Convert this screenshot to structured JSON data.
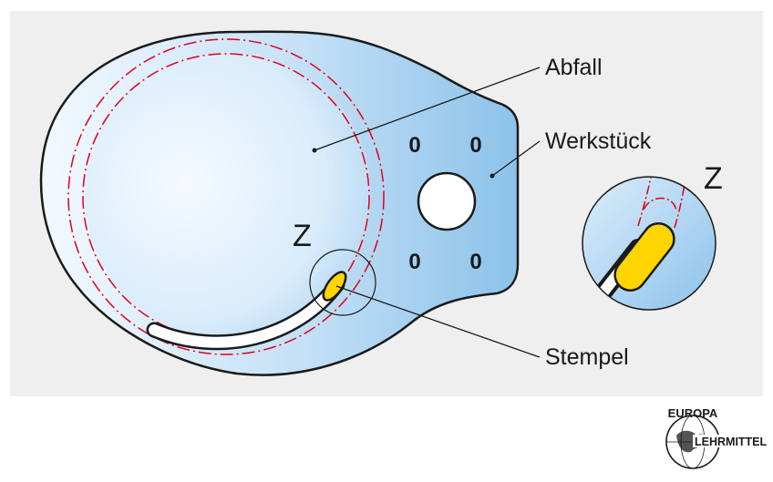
{
  "labels": {
    "abfall": "Abfall",
    "werkstueck": "Werkstück",
    "stempel": "Stempel",
    "z_main": "Z",
    "z_detail": "Z"
  },
  "holes": [
    "0",
    "0",
    "0",
    "0"
  ],
  "logo": {
    "top": "EUROPA",
    "right": "LEHRMITTEL"
  },
  "colors": {
    "panel_background": "#efeff0",
    "workpiece_light": "#e8f3fd",
    "workpiece_dark": "#8cc2ea",
    "cut_line": "#e0001a",
    "punch": "#ffd500",
    "outline": "#1a1a1a"
  }
}
